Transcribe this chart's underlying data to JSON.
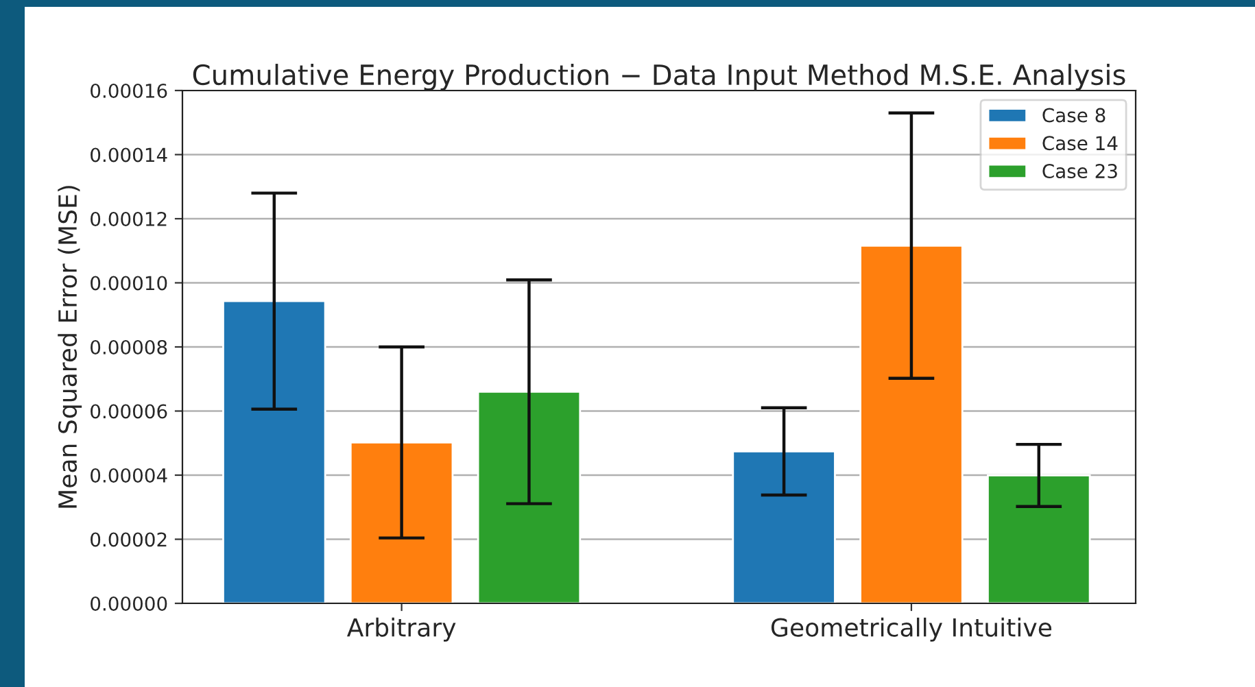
{
  "chart_data": {
    "type": "bar",
    "title": "Cumulative Energy Production − Data Input Method M.S.E. Analysis",
    "ylabel": "Mean Squared Error (MSE)",
    "categories": [
      "Arbitrary",
      "Geometrically Intuitive"
    ],
    "series": [
      {
        "name": "Case 8",
        "color": "#1f77b4",
        "values": [
          9.43e-05,
          4.74e-05
        ],
        "errors": [
          3.37e-05,
          1.36e-05
        ]
      },
      {
        "name": "Case 14",
        "color": "#ff7f0e",
        "values": [
          5.02e-05,
          0.0001116
        ],
        "errors": [
          2.98e-05,
          4.14e-05
        ]
      },
      {
        "name": "Case 23",
        "color": "#2ca02c",
        "values": [
          6.6e-05,
          3.99e-05
        ],
        "errors": [
          3.49e-05,
          9.7e-06
        ]
      }
    ],
    "ylim": [
      0,
      0.00016
    ],
    "yticks": [
      {
        "value": 0,
        "label": "0.00000"
      },
      {
        "value": 2e-05,
        "label": "0.00002"
      },
      {
        "value": 4e-05,
        "label": "0.00004"
      },
      {
        "value": 6e-05,
        "label": "0.00006"
      },
      {
        "value": 8e-05,
        "label": "0.00008"
      },
      {
        "value": 0.0001,
        "label": "0.00010"
      },
      {
        "value": 0.00012,
        "label": "0.00012"
      },
      {
        "value": 0.00014,
        "label": "0.00014"
      },
      {
        "value": 0.00016,
        "label": "0.00016"
      }
    ],
    "grid": "y",
    "legend": "top right"
  }
}
